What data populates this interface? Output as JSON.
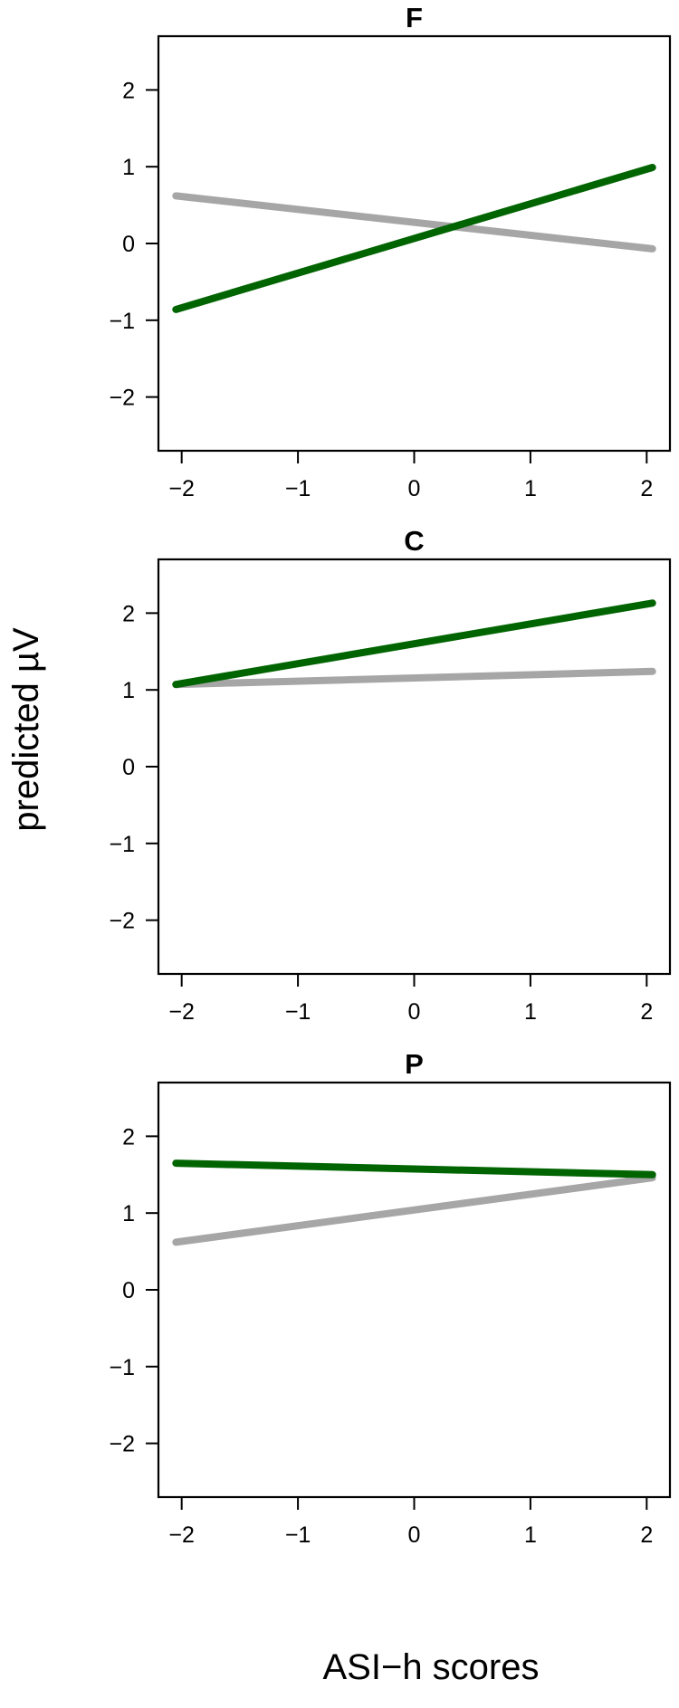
{
  "figure": {
    "xlabel": "ASI−h scores",
    "ylabel": "predicted µV"
  },
  "colors": {
    "green": "#006400",
    "gray": "#a6a6a6"
  },
  "chart_data": [
    {
      "type": "line",
      "title": "F",
      "xlim": [
        -2.2,
        2.2
      ],
      "ylim": [
        -2.7,
        2.7
      ],
      "xticks": [
        -2,
        -1,
        0,
        1,
        2
      ],
      "yticks": [
        -2,
        -1,
        0,
        1,
        2
      ],
      "xtick_labels": [
        "−2",
        "−1",
        "0",
        "1",
        "2"
      ],
      "ytick_labels": [
        "−2",
        "−1",
        "0",
        "1",
        "2"
      ],
      "series": [
        {
          "color": "#a6a6a6",
          "x": [
            -2.05,
            2.05
          ],
          "y": [
            0.62,
            -0.07
          ]
        },
        {
          "color": "#006400",
          "x": [
            -2.05,
            2.05
          ],
          "y": [
            -0.86,
            0.99
          ]
        }
      ]
    },
    {
      "type": "line",
      "title": "C",
      "xlim": [
        -2.2,
        2.2
      ],
      "ylim": [
        -2.7,
        2.7
      ],
      "xticks": [
        -2,
        -1,
        0,
        1,
        2
      ],
      "yticks": [
        -2,
        -1,
        0,
        1,
        2
      ],
      "xtick_labels": [
        "−2",
        "−1",
        "0",
        "1",
        "2"
      ],
      "ytick_labels": [
        "−2",
        "−1",
        "0",
        "1",
        "2"
      ],
      "series": [
        {
          "color": "#a6a6a6",
          "x": [
            -2.05,
            2.05
          ],
          "y": [
            1.07,
            1.24
          ]
        },
        {
          "color": "#006400",
          "x": [
            -2.05,
            2.05
          ],
          "y": [
            1.07,
            2.13
          ]
        }
      ]
    },
    {
      "type": "line",
      "title": "P",
      "xlim": [
        -2.2,
        2.2
      ],
      "ylim": [
        -2.7,
        2.7
      ],
      "xticks": [
        -2,
        -1,
        0,
        1,
        2
      ],
      "yticks": [
        -2,
        -1,
        0,
        1,
        2
      ],
      "xtick_labels": [
        "−2",
        "−1",
        "0",
        "1",
        "2"
      ],
      "ytick_labels": [
        "−2",
        "−1",
        "0",
        "1",
        "2"
      ],
      "series": [
        {
          "color": "#a6a6a6",
          "x": [
            -2.05,
            2.05
          ],
          "y": [
            0.62,
            1.46
          ]
        },
        {
          "color": "#006400",
          "x": [
            -2.05,
            2.05
          ],
          "y": [
            1.65,
            1.5
          ]
        }
      ]
    }
  ]
}
